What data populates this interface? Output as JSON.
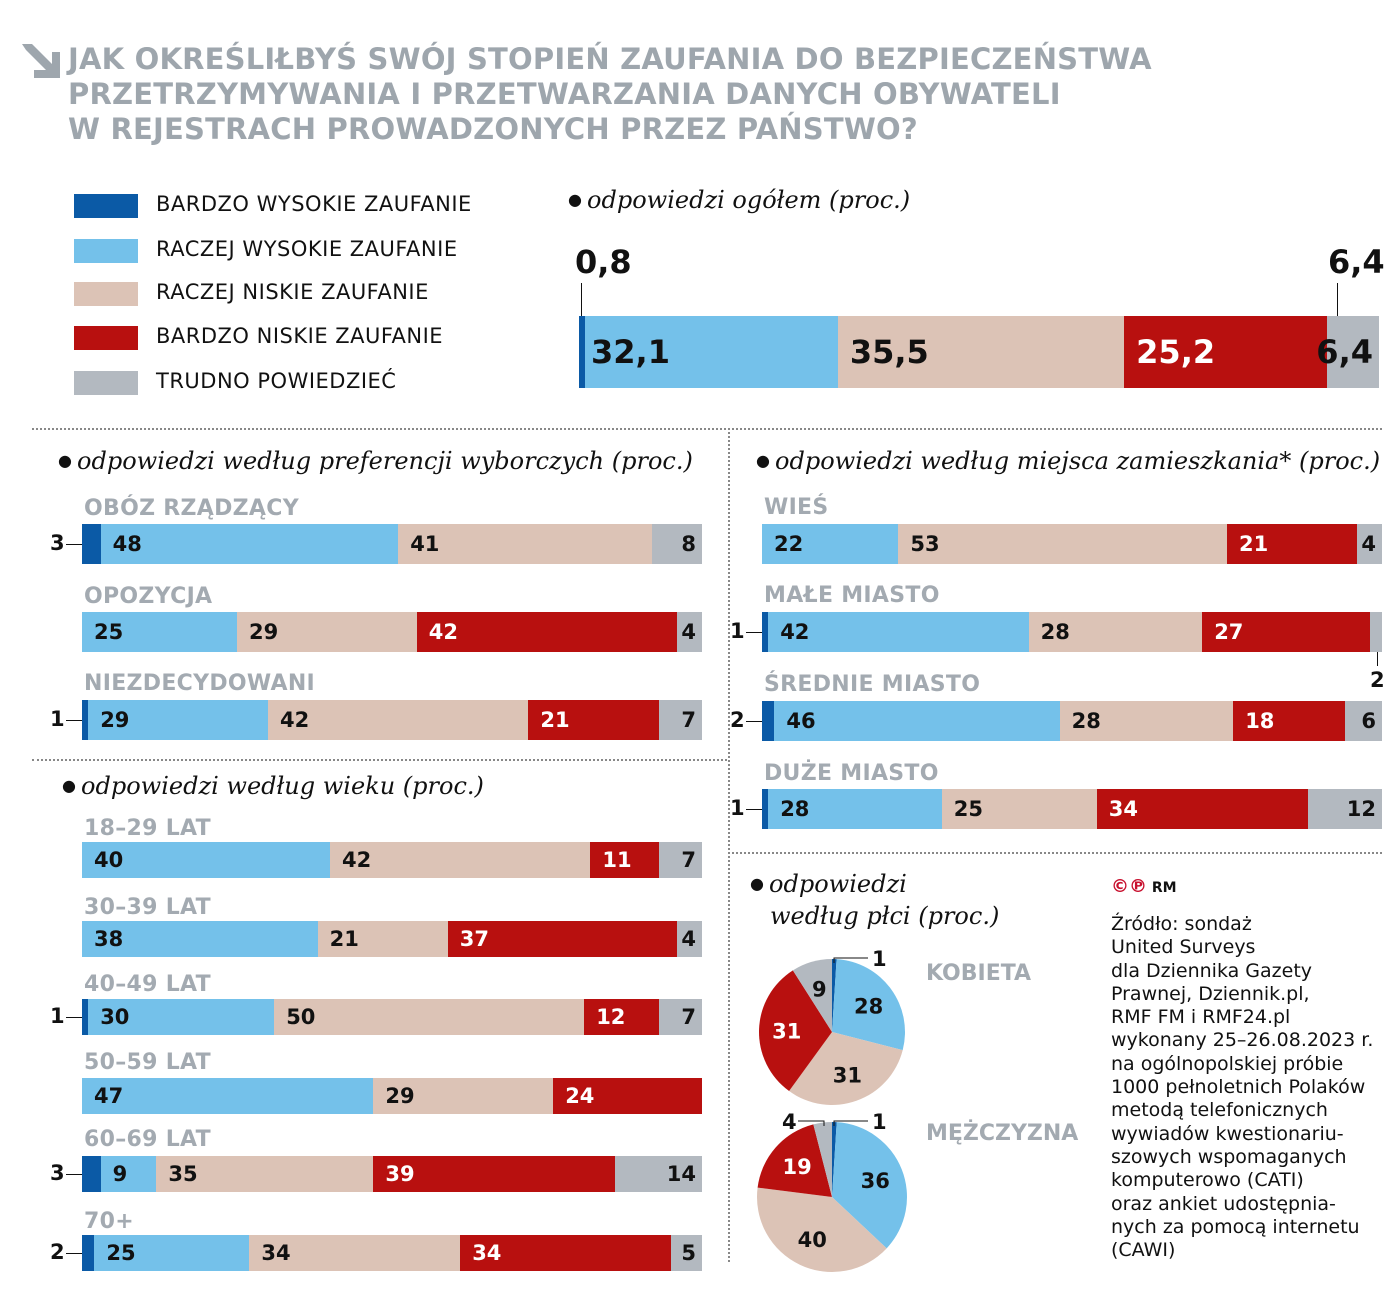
{
  "title": [
    "JAK OKREŚLIŁBYŚ SWÓJ STOPIEŃ ZAUFANIA DO BEZPIECZEŃSTWA",
    "PRZETRZYMYWANIA I PRZETWARZANIA DANYCH OBYWATELI",
    "W REJESTRACH PROWADZONYCH PRZEZ PAŃSTWO?"
  ],
  "colors": {
    "bardzo_wysokie": "#0b5aa6",
    "raczej_wysokie": "#74c1ea",
    "raczej_niskie": "#dcc3b6",
    "bardzo_niskie": "#b8100f",
    "trudno": "#b3b9c0",
    "heading": "#a3aab1"
  },
  "legend": [
    "BARDZO WYSOKIE ZAUFANIE",
    "RACZEJ WYSOKIE ZAUFANIE",
    "RACZEJ NISKIE ZAUFANIE",
    "BARDZO NISKIE ZAUFANIE",
    "TRUDNO POWIEDZIEĆ"
  ],
  "chart_data": [
    {
      "type": "bar",
      "stacked": true,
      "orientation": "horizontal",
      "subtitle": "odpowiedzi ogółem (proc.)",
      "categories": [
        ""
      ],
      "values": [
        [
          0.8,
          32.1,
          35.5,
          25.2,
          6.4
        ]
      ],
      "labels": [
        [
          "0,8",
          "32,1",
          "35,5",
          "25,2",
          "6,4"
        ]
      ]
    },
    {
      "type": "bar",
      "stacked": true,
      "orientation": "horizontal",
      "subtitle": "odpowiedzi według preferencji wyborczych (proc.)",
      "categories": [
        "OBÓZ RZĄDZĄCY",
        "OPOZYCJA",
        "NIEZDECYDOWANI"
      ],
      "values": [
        [
          3,
          48,
          41,
          0,
          8
        ],
        [
          0,
          25,
          29,
          42,
          4
        ],
        [
          1,
          29,
          42,
          21,
          7
        ]
      ]
    },
    {
      "type": "bar",
      "stacked": true,
      "orientation": "horizontal",
      "subtitle": "odpowiedzi według wieku (proc.)",
      "categories": [
        "18–29 LAT",
        "30–39 LAT",
        "40–49 LAT",
        "50–59 LAT",
        "60–69 LAT",
        "70+"
      ],
      "values": [
        [
          0,
          40,
          42,
          11,
          7
        ],
        [
          0,
          38,
          21,
          37,
          4
        ],
        [
          1,
          30,
          50,
          12,
          7
        ],
        [
          0,
          47,
          29,
          24,
          0
        ],
        [
          3,
          9,
          35,
          39,
          14
        ],
        [
          2,
          25,
          34,
          34,
          5
        ]
      ]
    },
    {
      "type": "bar",
      "stacked": true,
      "orientation": "horizontal",
      "subtitle": "odpowiedzi według miejsca zamieszkania* (proc.)",
      "categories": [
        "WIEŚ",
        "MAŁE MIASTO",
        "ŚREDNIE MIASTO",
        "DUŻE MIASTO"
      ],
      "values": [
        [
          0,
          22,
          53,
          21,
          4
        ],
        [
          1,
          42,
          28,
          27,
          2
        ],
        [
          2,
          46,
          28,
          18,
          6
        ],
        [
          1,
          28,
          25,
          34,
          12
        ]
      ]
    },
    {
      "type": "pie",
      "subtitle": [
        "odpowiedzi",
        "według płci (proc.)"
      ],
      "categories": [
        "KOBIETA",
        "MĘŻCZYZNA"
      ],
      "values": [
        [
          1,
          28,
          31,
          31,
          9
        ],
        [
          1,
          36,
          40,
          19,
          4
        ]
      ]
    }
  ],
  "copyright": "RM",
  "source": [
    "Źródło: sondaż",
    "United Surveys",
    "dla Dziennika Gazety",
    "Prawnej, Dziennik.pl,",
    "RMF FM i RMF24.pl",
    "wykonany 25–26.08.2023 r.",
    "na ogólnopolskiej próbie",
    "1000 pełnoletnich Polaków",
    "metodą telefonicznych",
    "wywiadów kwestionariu-",
    "szowych wspomaganych",
    "komputerowo (CATI)",
    "oraz ankiet udostępnia-",
    "nych za pomocą internetu",
    "(CAWI)"
  ]
}
